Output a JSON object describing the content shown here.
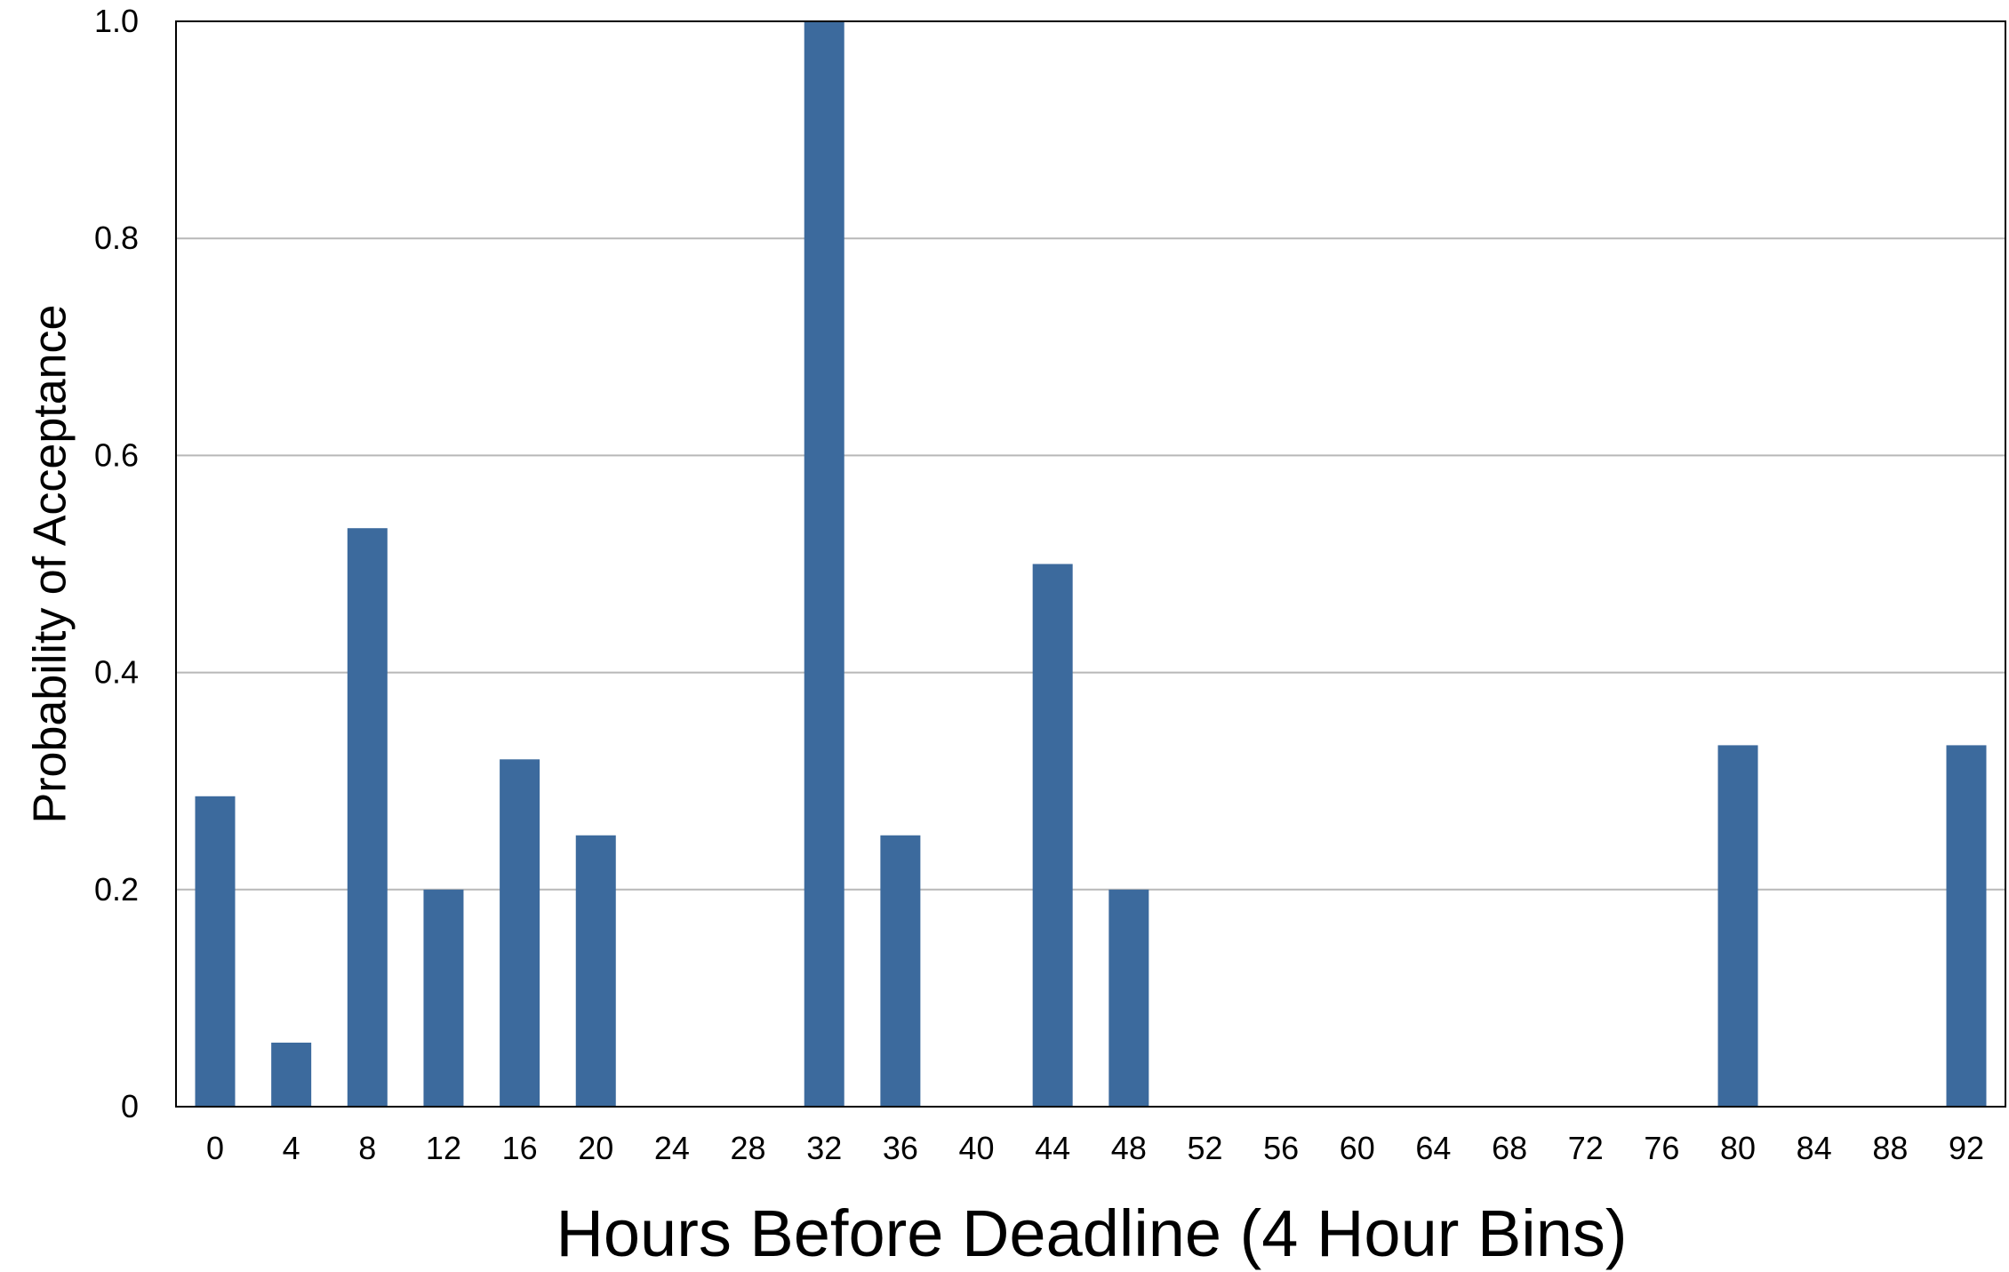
{
  "chart_data": {
    "type": "bar",
    "title": "",
    "xlabel": "Hours Before Deadline (4 Hour Bins)",
    "ylabel": "Probability of Acceptance",
    "ylim": [
      0,
      1.0
    ],
    "yticks": [
      0,
      0.2,
      0.4,
      0.6,
      0.8,
      1.0
    ],
    "ytick_labels": [
      "0",
      "0.2",
      "0.4",
      "0.6",
      "0.8",
      "1.0"
    ],
    "grid": "horizontal",
    "categories": [
      "0",
      "4",
      "8",
      "12",
      "16",
      "20",
      "24",
      "28",
      "32",
      "36",
      "40",
      "44",
      "48",
      "52",
      "56",
      "60",
      "64",
      "68",
      "72",
      "76",
      "80",
      "84",
      "88",
      "92"
    ],
    "values": [
      0.286,
      0.059,
      0.533,
      0.2,
      0.32,
      0.25,
      0,
      0,
      1.0,
      0.25,
      0,
      0.5,
      0.2,
      0,
      0,
      0,
      0,
      0,
      0,
      0,
      0.333,
      0,
      0,
      0.333
    ],
    "colors": {
      "bar": "#3c6a9d",
      "grid": "#b8b8b8",
      "axis": "#000000"
    }
  }
}
